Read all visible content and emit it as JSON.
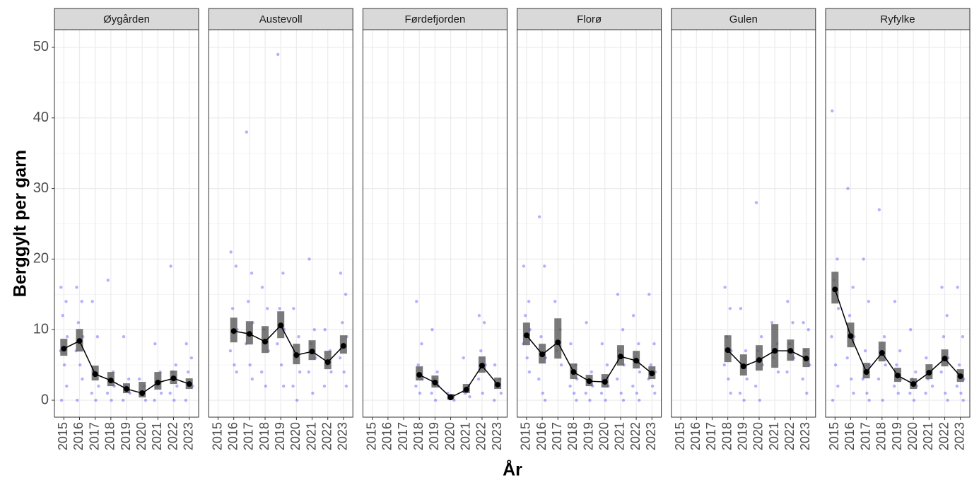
{
  "axis_labels": {
    "y": "Berggylt per garn",
    "x": "År"
  },
  "chart_data": [
    {
      "type": "line",
      "title": "Øygården",
      "categories": [
        "2015",
        "2016",
        "2017",
        "2018",
        "2019",
        "2020",
        "2021",
        "2022",
        "2023"
      ],
      "mean": [
        7.3,
        8.4,
        3.7,
        2.8,
        1.6,
        1.0,
        2.5,
        3.1,
        2.3
      ],
      "ci_low": [
        6.3,
        6.9,
        2.8,
        2.0,
        1.0,
        0.4,
        1.5,
        2.3,
        1.6
      ],
      "ci_high": [
        8.7,
        10.1,
        4.9,
        4.0,
        2.4,
        2.6,
        4.0,
        4.2,
        3.1
      ],
      "points": [
        [
          16,
          14,
          12,
          9,
          7,
          5,
          2,
          0
        ],
        [
          16,
          14,
          11,
          9,
          7,
          5,
          3,
          0
        ],
        [
          14,
          9,
          4,
          2,
          1,
          0
        ],
        [
          17,
          4,
          3,
          2,
          1,
          0
        ],
        [
          9,
          3,
          2,
          1,
          0
        ],
        [
          3,
          2,
          1,
          0
        ],
        [
          8,
          4,
          2,
          1,
          0
        ],
        [
          19,
          5,
          4,
          2,
          1,
          0
        ],
        [
          8,
          6,
          4,
          2,
          0
        ]
      ],
      "ylim": [
        -2.4,
        52.5
      ],
      "yticks": [
        0,
        10,
        20,
        30,
        40,
        50
      ],
      "minor_yticks": [
        5,
        15,
        25,
        35,
        45
      ],
      "grid": true,
      "line_color": "#000000",
      "ci_color": "#595959",
      "point_color": "#0000ff"
    },
    {
      "type": "line",
      "title": "Austevoll",
      "categories": [
        "2015",
        "2016",
        "2017",
        "2018",
        "2019",
        "2020",
        "2021",
        "2022",
        "2023"
      ],
      "mean": [
        null,
        9.8,
        9.4,
        8.3,
        10.6,
        6.4,
        6.9,
        5.4,
        7.7
      ],
      "ci_low": [
        null,
        8.2,
        7.9,
        6.7,
        8.8,
        5.1,
        5.7,
        4.4,
        6.6
      ],
      "ci_high": [
        null,
        11.7,
        11.2,
        10.5,
        12.6,
        8.0,
        8.5,
        7.0,
        9.2
      ],
      "points": [
        [],
        [
          21,
          19,
          13,
          10,
          7,
          5,
          4
        ],
        [
          38,
          18,
          14,
          11,
          8,
          5,
          3
        ],
        [
          16,
          13,
          10,
          7,
          4,
          2
        ],
        [
          49,
          18,
          13,
          10,
          8,
          5,
          2
        ],
        [
          13,
          9,
          6,
          4,
          2,
          0
        ],
        [
          20,
          10,
          8,
          6,
          4,
          1
        ],
        [
          10,
          7,
          5,
          4,
          2
        ],
        [
          18,
          15,
          11,
          9,
          6,
          4,
          2
        ]
      ],
      "ylim": [
        -2.4,
        52.5
      ],
      "yticks": [
        0,
        10,
        20,
        30,
        40,
        50
      ],
      "minor_yticks": [
        5,
        15,
        25,
        35,
        45
      ],
      "grid": true,
      "line_color": "#000000",
      "ci_color": "#595959",
      "point_color": "#0000ff"
    },
    {
      "type": "line",
      "title": "Førdefjorden",
      "categories": [
        "2015",
        "2016",
        "2017",
        "2018",
        "2019",
        "2020",
        "2021",
        "2022",
        "2023"
      ],
      "mean": [
        null,
        null,
        null,
        3.6,
        2.5,
        0.4,
        1.5,
        4.9,
        2.2
      ],
      "ci_low": [
        null,
        null,
        null,
        2.8,
        1.8,
        0.1,
        1.0,
        3.9,
        1.6
      ],
      "ci_high": [
        null,
        null,
        null,
        4.8,
        3.5,
        0.9,
        2.3,
        6.2,
        3.2
      ],
      "points": [
        [],
        [],
        [],
        [
          14,
          8,
          5,
          3,
          2,
          1
        ],
        [
          10,
          4,
          3,
          2,
          1,
          0
        ],
        [
          1,
          0.5,
          0.2,
          0
        ],
        [
          6,
          2,
          1,
          0.5
        ],
        [
          12,
          11,
          7,
          5,
          3,
          1
        ],
        [
          5,
          3,
          2,
          1,
          0
        ]
      ],
      "ylim": [
        -2.4,
        52.5
      ],
      "yticks": [
        0,
        10,
        20,
        30,
        40,
        50
      ],
      "minor_yticks": [
        5,
        15,
        25,
        35,
        45
      ],
      "grid": true,
      "line_color": "#000000",
      "ci_color": "#595959",
      "point_color": "#0000ff"
    },
    {
      "type": "line",
      "title": "Florø",
      "categories": [
        "2015",
        "2016",
        "2017",
        "2018",
        "2019",
        "2020",
        "2021",
        "2022",
        "2023"
      ],
      "mean": [
        9.2,
        6.5,
        8.2,
        4.0,
        2.7,
        2.6,
        6.2,
        5.6,
        3.8
      ],
      "ci_low": [
        7.8,
        5.2,
        5.9,
        3.0,
        2.0,
        1.8,
        4.9,
        4.5,
        3.0
      ],
      "ci_high": [
        11.0,
        8.0,
        11.6,
        5.2,
        3.6,
        3.7,
        7.8,
        7.0,
        4.8
      ],
      "points": [
        [
          19,
          14,
          12,
          10,
          8,
          6,
          4
        ],
        [
          26,
          19,
          9,
          6,
          3,
          1,
          0
        ],
        [
          14,
          10,
          7,
          5
        ],
        [
          8,
          5,
          4,
          3,
          2,
          1,
          0
        ],
        [
          11,
          4,
          3,
          2,
          1,
          0
        ],
        [
          8,
          5,
          3,
          2,
          1,
          0
        ],
        [
          15,
          10,
          7,
          5,
          3,
          1,
          0
        ],
        [
          12,
          8,
          6,
          4,
          2,
          1,
          0
        ],
        [
          15,
          8,
          5,
          4,
          3,
          2,
          1
        ]
      ],
      "ylim": [
        -2.4,
        52.5
      ],
      "yticks": [
        0,
        10,
        20,
        30,
        40,
        50
      ],
      "minor_yticks": [
        5,
        15,
        25,
        35,
        45
      ],
      "grid": true,
      "line_color": "#000000",
      "ci_color": "#595959",
      "point_color": "#0000ff"
    },
    {
      "type": "line",
      "title": "Gulen",
      "categories": [
        "2015",
        "2016",
        "2017",
        "2018",
        "2019",
        "2020",
        "2021",
        "2022",
        "2023"
      ],
      "mean": [
        null,
        null,
        null,
        7.1,
        4.8,
        5.7,
        7.0,
        7.0,
        5.9
      ],
      "ci_low": [
        null,
        null,
        null,
        5.4,
        3.5,
        4.2,
        4.6,
        5.6,
        4.7
      ],
      "ci_high": [
        null,
        null,
        null,
        9.2,
        6.5,
        7.8,
        10.8,
        8.6,
        7.4
      ],
      "points": [
        [],
        [],
        [],
        [
          16,
          13,
          9,
          7,
          5,
          3,
          1
        ],
        [
          13,
          7,
          5,
          3,
          1,
          0
        ],
        [
          28,
          9,
          7,
          5,
          2,
          0
        ],
        [
          11,
          8,
          6,
          4
        ],
        [
          14,
          11,
          8,
          6,
          4
        ],
        [
          11,
          10,
          7,
          5,
          3,
          1
        ]
      ],
      "ylim": [
        -2.4,
        52.5
      ],
      "yticks": [
        0,
        10,
        20,
        30,
        40,
        50
      ],
      "minor_yticks": [
        5,
        15,
        25,
        35,
        45
      ],
      "grid": true,
      "line_color": "#000000",
      "ci_color": "#595959",
      "point_color": "#0000ff"
    },
    {
      "type": "line",
      "title": "Ryfylke",
      "categories": [
        "2015",
        "2016",
        "2017",
        "2018",
        "2019",
        "2020",
        "2021",
        "2022",
        "2023"
      ],
      "mean": [
        15.7,
        9.1,
        4.0,
        6.7,
        3.5,
        2.3,
        3.9,
        5.9,
        3.4
      ],
      "ci_low": [
        13.7,
        7.5,
        3.1,
        5.5,
        2.6,
        1.6,
        3.0,
        4.8,
        2.6
      ],
      "ci_high": [
        18.2,
        11.0,
        5.3,
        8.3,
        4.6,
        3.1,
        5.1,
        7.2,
        4.4
      ],
      "points": [
        [
          41,
          20,
          17,
          13,
          9,
          5,
          2,
          0
        ],
        [
          30,
          16,
          12,
          9,
          6,
          3,
          1
        ],
        [
          20,
          14,
          7,
          5,
          3,
          1,
          0
        ],
        [
          27,
          9,
          7,
          5,
          3,
          0
        ],
        [
          14,
          7,
          5,
          3,
          2,
          1
        ],
        [
          10,
          4,
          3,
          2,
          1,
          0
        ],
        [
          6,
          4,
          3,
          2,
          1
        ],
        [
          16,
          12,
          9,
          6,
          4,
          1,
          0
        ],
        [
          16,
          9,
          5,
          3,
          2,
          1,
          0
        ]
      ],
      "ylim": [
        -2.4,
        52.5
      ],
      "yticks": [
        0,
        10,
        20,
        30,
        40,
        50
      ],
      "minor_yticks": [
        5,
        15,
        25,
        35,
        45
      ],
      "grid": true,
      "line_color": "#000000",
      "ci_color": "#595959",
      "point_color": "#0000ff"
    }
  ]
}
